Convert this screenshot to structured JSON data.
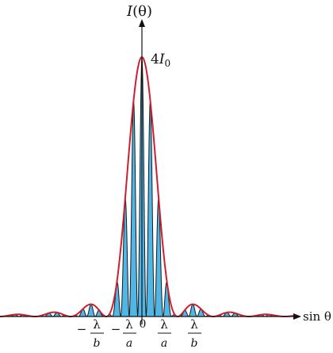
{
  "colors": {
    "envelope": "#cc1f2f",
    "fringe_fill": "#4fb6e6",
    "fringe_stroke": "#1a1a1a",
    "axis": "#111111"
  },
  "labels": {
    "y_axis_func": "I",
    "y_axis_arg": "(θ)",
    "x_axis": "sin θ",
    "peak_coeff": "4",
    "peak_var": "I",
    "peak_sub": "0",
    "origin": "0",
    "lambda": "λ",
    "a": "a",
    "b": "b",
    "minus": "−"
  }
}
